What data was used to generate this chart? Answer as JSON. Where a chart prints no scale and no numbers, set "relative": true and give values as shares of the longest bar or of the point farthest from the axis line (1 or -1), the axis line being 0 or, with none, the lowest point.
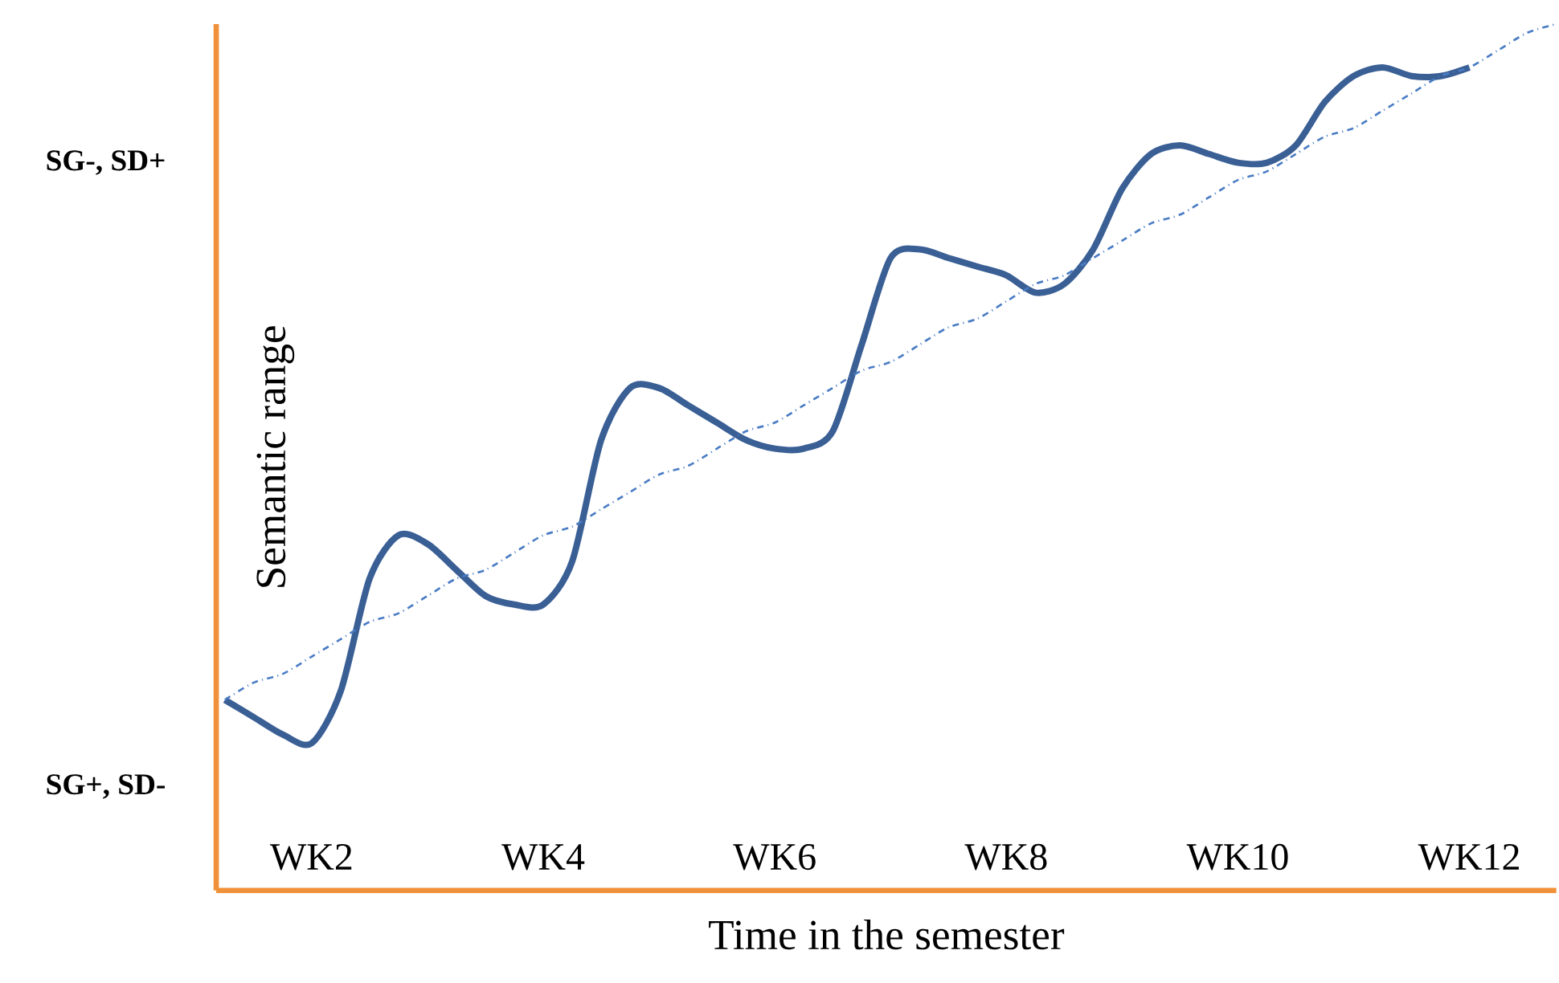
{
  "chart_data": {
    "type": "line",
    "relative": true,
    "xlabel": "Time in the semester",
    "ylabel": "Semantic range",
    "annotations": [
      "SG-, SD+",
      "SG+, SD-"
    ],
    "categories": [
      null,
      null,
      null,
      "WK2",
      null,
      null,
      null,
      null,
      null,
      null,
      null,
      "WK4",
      null,
      null,
      null,
      null,
      null,
      null,
      null,
      "WK6",
      null,
      null,
      null,
      null,
      null,
      null,
      null,
      "WK8",
      null,
      null,
      null,
      null,
      null,
      null,
      null,
      "WK10",
      null,
      null,
      null,
      null,
      null,
      null,
      null,
      "WK12",
      null,
      null,
      null
    ],
    "series": [
      {
        "color": "#3a5f95",
        "line_style": "solid",
        "values": [
          0.22,
          0.2,
          0.18,
          0.17,
          0.23,
          0.36,
          0.41,
          0.4,
          0.37,
          0.34,
          0.33,
          0.33,
          0.38,
          0.52,
          0.58,
          0.58,
          0.56,
          0.54,
          0.52,
          0.51,
          0.51,
          0.53,
          0.63,
          0.73,
          0.74,
          0.73,
          0.72,
          0.71,
          0.69,
          0.7,
          0.74,
          0.81,
          0.85,
          0.86,
          0.85,
          0.84,
          0.84,
          0.86,
          0.91,
          0.94,
          0.95,
          0.94,
          0.94,
          0.95,
          null,
          null,
          null
        ]
      },
      {
        "color": "#4a7cc4",
        "line_style": "dashdot",
        "values": [
          0.22,
          0.24,
          0.25,
          0.27,
          0.29,
          0.31,
          0.32,
          0.34,
          0.36,
          0.37,
          0.39,
          0.41,
          0.42,
          0.44,
          0.46,
          0.48,
          0.49,
          0.51,
          0.53,
          0.54,
          0.56,
          0.58,
          0.6,
          0.61,
          0.63,
          0.65,
          0.66,
          0.68,
          0.7,
          0.71,
          0.73,
          0.75,
          0.77,
          0.78,
          0.8,
          0.82,
          0.83,
          0.85,
          0.87,
          0.88,
          0.9,
          0.92,
          0.94,
          0.95,
          0.97,
          0.99,
          1.0
        ]
      }
    ]
  }
}
